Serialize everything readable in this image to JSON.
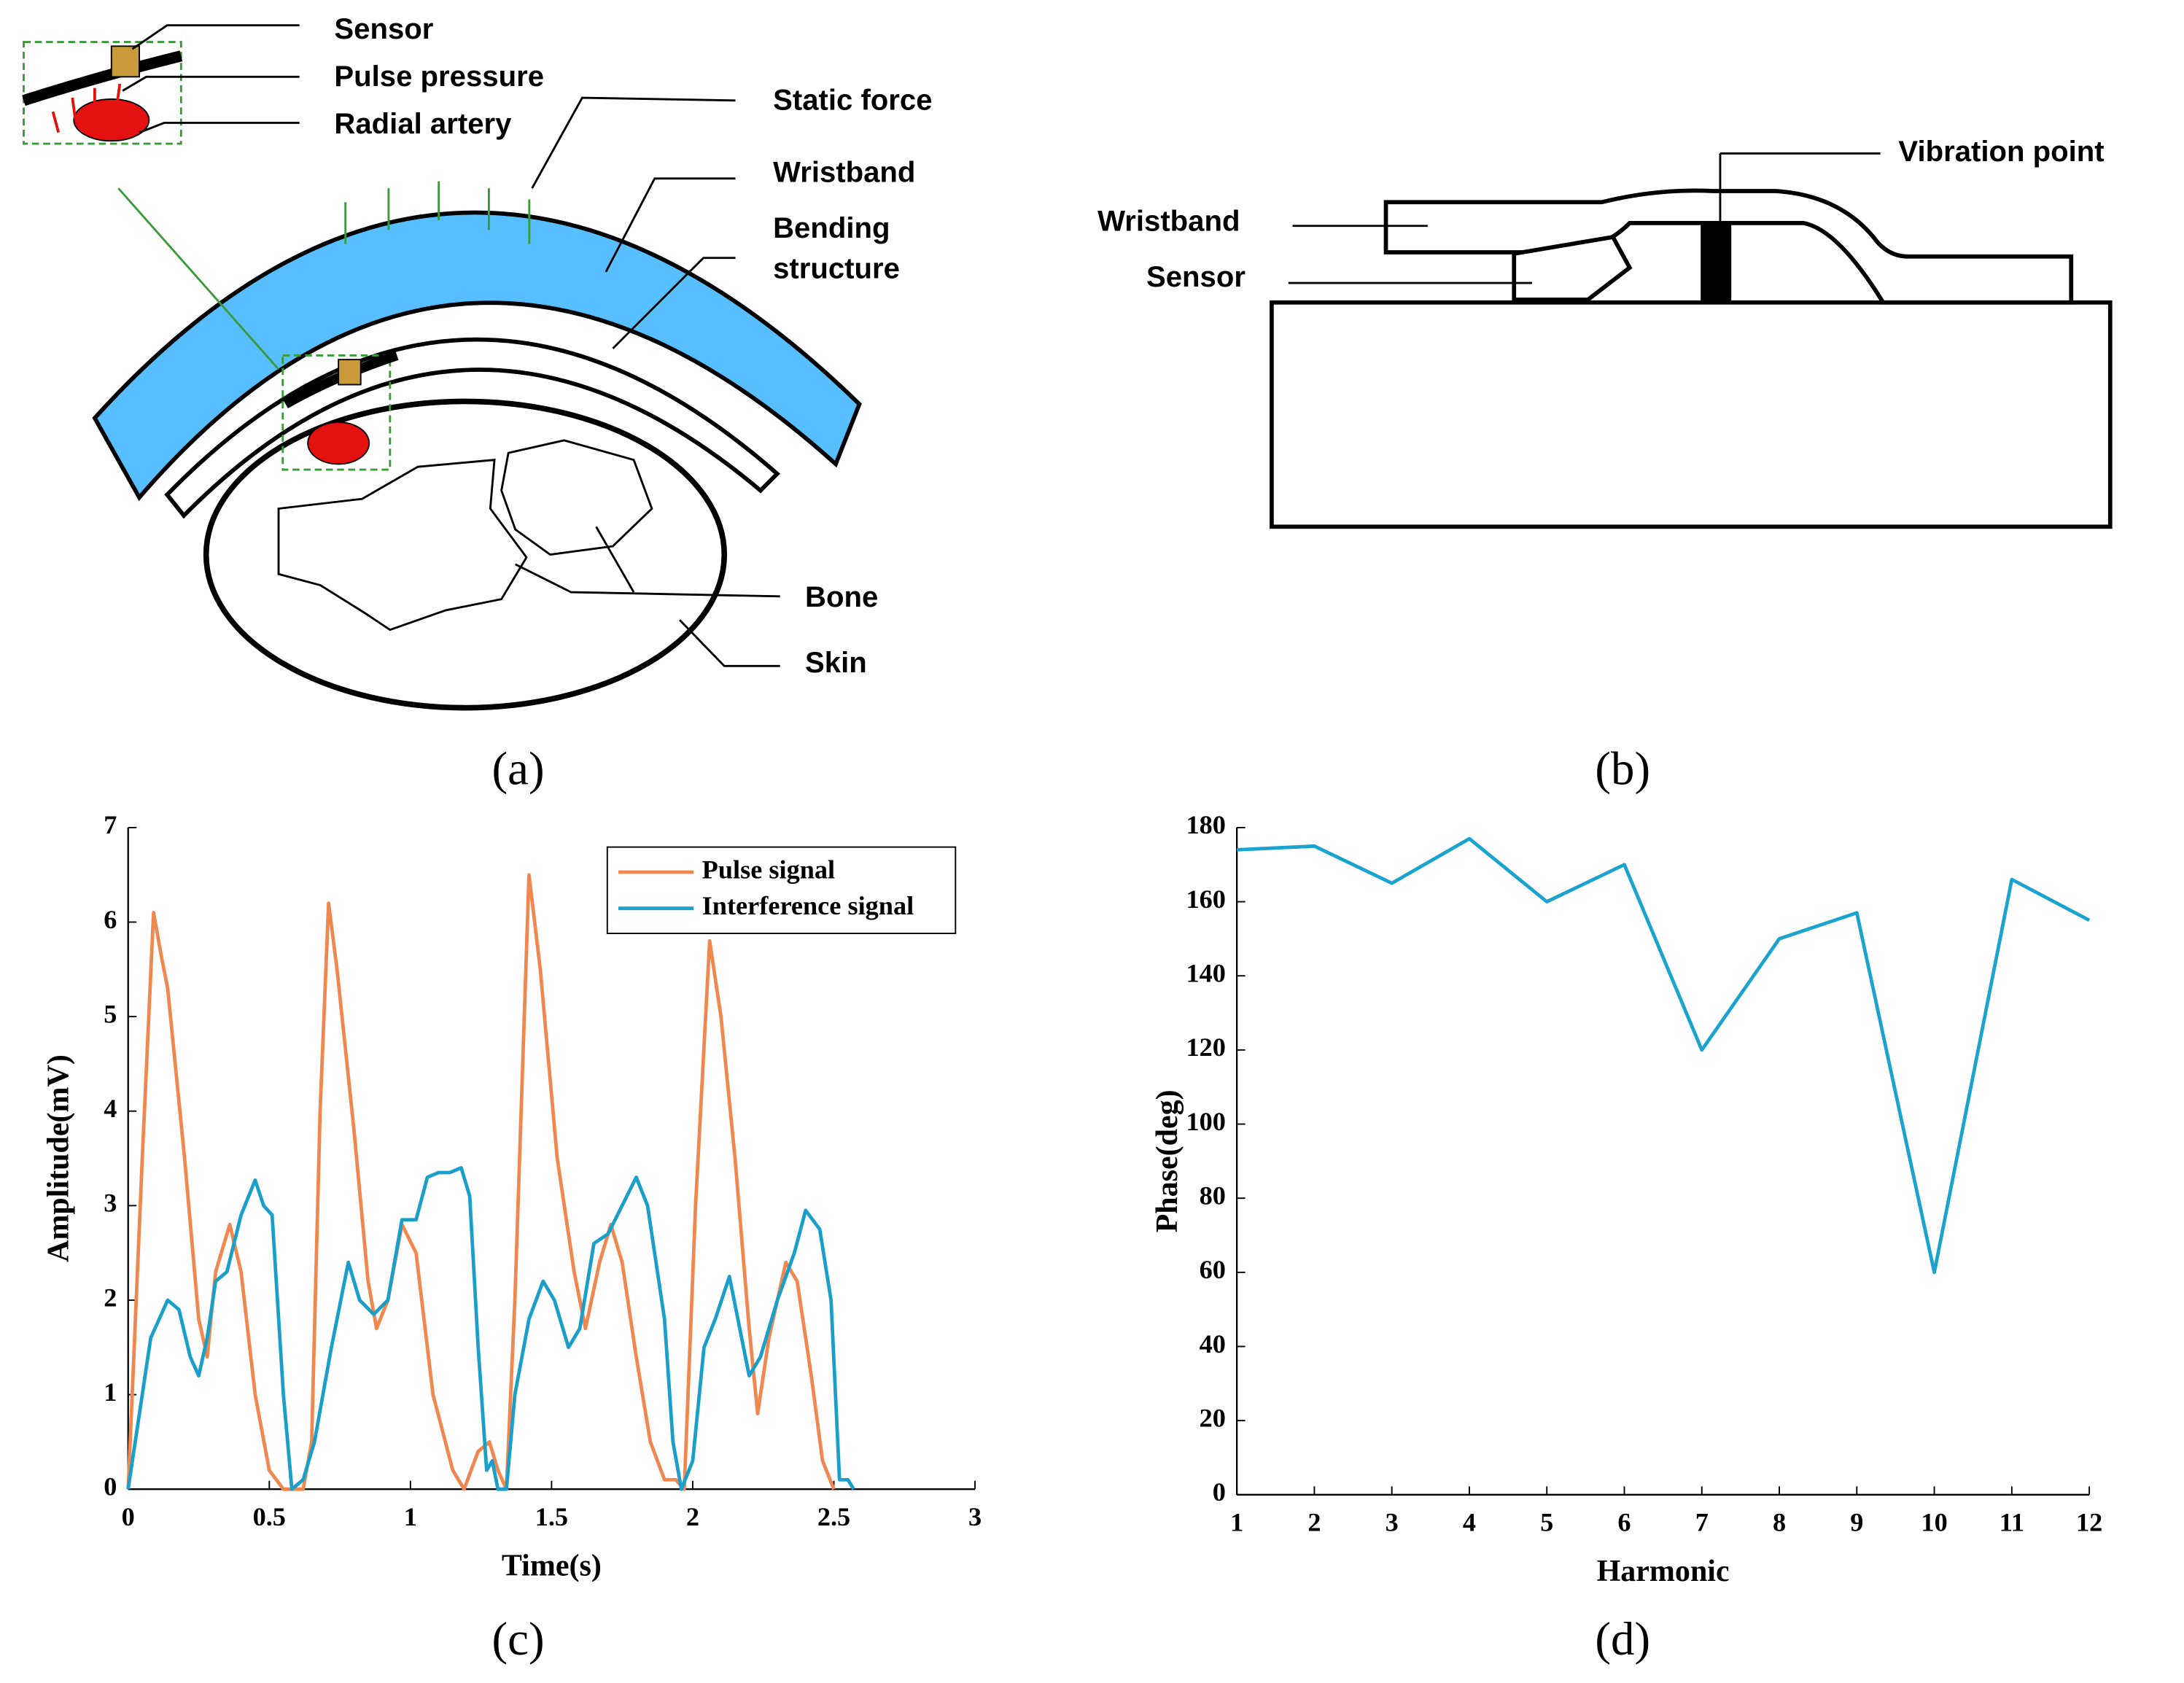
{
  "diagram_a": {
    "labels": {
      "sensor": "Sensor",
      "pulse_pressure": "Pulse pressure",
      "radial_artery": "Radial artery",
      "static_force": "Static force",
      "wristband": "Wristband",
      "bending_structure": [
        "Bending",
        "structure"
      ],
      "bone": "Bone",
      "skin": "Skin"
    },
    "caption": "(a)"
  },
  "diagram_b": {
    "labels": {
      "vibration_point": "Vibration point",
      "wristband": "Wristband",
      "sensor": "Sensor"
    },
    "caption": "(b)"
  },
  "chart_data": [
    {
      "type": "line",
      "caption": "(c)",
      "xlabel": "Time(s)",
      "ylabel": "Amplitude(mV)",
      "xlim": [
        0,
        3
      ],
      "xticks": [
        0,
        0.5,
        1,
        1.5,
        2,
        2.5,
        3
      ],
      "ylim": [
        0,
        7
      ],
      "yticks": [
        0,
        1,
        2,
        3,
        4,
        5,
        6,
        7
      ],
      "legend": "top-right",
      "series": [
        {
          "name": "Pulse signal",
          "color": "#f0874f",
          "x": [
            0,
            0.05,
            0.09,
            0.12,
            0.14,
            0.2,
            0.25,
            0.28,
            0.31,
            0.36,
            0.4,
            0.45,
            0.5,
            0.55,
            0.62,
            0.65,
            0.68,
            0.71,
            0.74,
            0.8,
            0.85,
            0.88,
            0.92,
            0.97,
            1.02,
            1.08,
            1.15,
            1.19,
            1.24,
            1.28,
            1.31,
            1.34,
            1.37,
            1.42,
            1.46,
            1.52,
            1.58,
            1.62,
            1.67,
            1.71,
            1.75,
            1.8,
            1.85,
            1.9,
            1.94,
            1.97,
            2.01,
            2.06,
            2.1,
            2.15,
            2.2,
            2.23,
            2.27,
            2.33,
            2.37,
            2.42,
            2.46,
            2.5
          ],
          "values": [
            0,
            3.5,
            6.1,
            5.6,
            5.3,
            3.5,
            1.8,
            1.4,
            2.3,
            2.8,
            2.3,
            1.0,
            0.2,
            0,
            0,
            0.5,
            4,
            6.2,
            5.5,
            3.8,
            2.2,
            1.7,
            2.0,
            2.8,
            2.5,
            1.0,
            0.2,
            0,
            0.4,
            0.5,
            0.2,
            0,
            2,
            6.5,
            5.5,
            3.5,
            2.3,
            1.7,
            2.4,
            2.8,
            2.4,
            1.4,
            0.5,
            0.1,
            0.1,
            0,
            3,
            5.8,
            5.0,
            3.5,
            1.7,
            0.8,
            1.6,
            2.4,
            2.2,
            1.2,
            0.3,
            0
          ]
        },
        {
          "name": "Interference signal",
          "color": "#1a9fcb",
          "x": [
            0,
            0.04,
            0.08,
            0.14,
            0.18,
            0.22,
            0.25,
            0.28,
            0.31,
            0.35,
            0.4,
            0.45,
            0.48,
            0.51,
            0.55,
            0.58,
            0.62,
            0.66,
            0.72,
            0.78,
            0.82,
            0.87,
            0.92,
            0.97,
            1.02,
            1.06,
            1.1,
            1.14,
            1.18,
            1.21,
            1.24,
            1.27,
            1.29,
            1.31,
            1.34,
            1.37,
            1.42,
            1.47,
            1.51,
            1.56,
            1.6,
            1.65,
            1.7,
            1.75,
            1.8,
            1.84,
            1.9,
            1.93,
            1.96,
            2.0,
            2.04,
            2.08,
            2.13,
            2.16,
            2.2,
            2.24,
            2.3,
            2.36,
            2.4,
            2.45,
            2.49,
            2.52,
            2.55,
            2.57
          ],
          "values": [
            0,
            0.8,
            1.6,
            2.0,
            1.9,
            1.4,
            1.2,
            1.6,
            2.2,
            2.3,
            2.9,
            3.27,
            3.0,
            2.9,
            1.0,
            0,
            0.1,
            0.5,
            1.5,
            2.4,
            2.0,
            1.85,
            2.0,
            2.85,
            2.85,
            3.3,
            3.35,
            3.35,
            3.4,
            3.1,
            1.5,
            0.2,
            0.3,
            0,
            0,
            1.0,
            1.8,
            2.2,
            2.0,
            1.5,
            1.7,
            2.6,
            2.7,
            3.0,
            3.3,
            3.0,
            1.8,
            0.5,
            0,
            0.3,
            1.5,
            1.8,
            2.25,
            1.8,
            1.2,
            1.4,
            2.0,
            2.5,
            2.95,
            2.75,
            2.0,
            0.1,
            0.1,
            0
          ]
        }
      ]
    },
    {
      "type": "line",
      "caption": "(d)",
      "xlabel": "Harmonic",
      "ylabel": "Phase(deg)",
      "xlim": [
        1,
        12
      ],
      "xticks": [
        1,
        2,
        3,
        4,
        5,
        6,
        7,
        8,
        9,
        10,
        11,
        12
      ],
      "ylim": [
        0,
        180
      ],
      "yticks": [
        0,
        20,
        40,
        60,
        80,
        100,
        120,
        140,
        160,
        180
      ],
      "x": [
        1,
        2,
        3,
        4,
        5,
        6,
        7,
        8,
        9,
        10,
        11,
        12
      ],
      "series": [
        {
          "color": "#1aa3cf",
          "values": [
            174,
            175,
            165,
            177,
            160,
            170,
            120,
            150,
            157,
            60,
            166,
            155
          ]
        }
      ]
    }
  ]
}
